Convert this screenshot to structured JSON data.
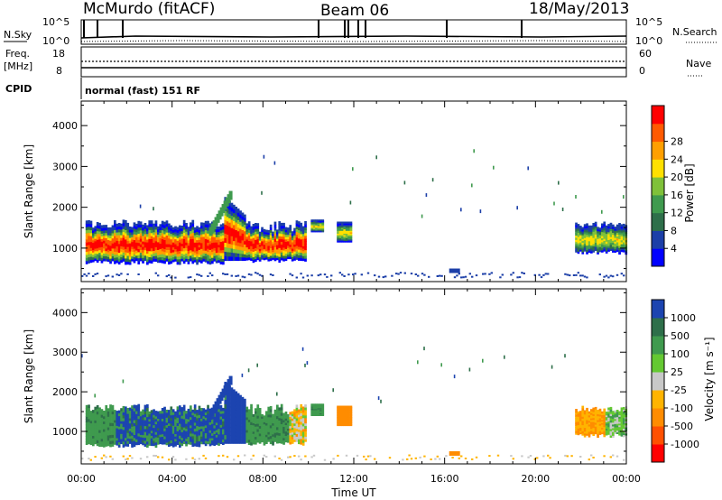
{
  "header": {
    "radar": "McMurdo (fitACF)",
    "beam": "Beam 06",
    "date": "18/May/2013"
  },
  "top_panels": {
    "nsky_label": "N.Sky",
    "nsearch_label": "N.Search",
    "nsky_ticks": [
      "10^5",
      "10^0"
    ],
    "nsearch_ticks": [
      "10^5",
      "10^0"
    ],
    "freq_label_1": "Freq.",
    "freq_label_2": "[MHz]",
    "freq_ticks": [
      "18",
      "8"
    ],
    "nave_label": "Nave",
    "nave_ticks": [
      "60",
      "0"
    ],
    "cpid_label": "CPID",
    "cpid_text": "normal (fast) 151 RF"
  },
  "colors": {
    "power": [
      "#0000ff",
      "#1c3fa8",
      "#2e6f4a",
      "#3f9a4e",
      "#7fc13a",
      "#ffe000",
      "#ff9f00",
      "#ff5a00",
      "#ff0000"
    ],
    "velocity": [
      "#ff0000",
      "#ff5000",
      "#ff8c00",
      "#ffb400",
      "#c8c8c8",
      "#64c832",
      "#3f9a4e",
      "#2e6f4a",
      "#1c44b0"
    ]
  },
  "chart_data": [
    {
      "type": "heatmap",
      "name": "power",
      "ylabel": "Slant Range [km]",
      "ylim": [
        180,
        4600
      ],
      "yticks": [
        "1000",
        "2000",
        "3000",
        "4000"
      ],
      "colorbar_label": "Power [dB]",
      "colorbar_ticks": [
        "4",
        "8",
        "12",
        "16",
        "20",
        "24",
        "28"
      ],
      "xlim": [
        0,
        24
      ]
    },
    {
      "type": "heatmap",
      "name": "velocity",
      "ylabel": "Slant Range [km]",
      "ylim": [
        180,
        4600
      ],
      "yticks": [
        "1000",
        "2000",
        "3000",
        "4000"
      ],
      "colorbar_label": "Velocity [m s⁻¹]",
      "colorbar_ticks": [
        "-1000",
        "-500",
        "-100",
        "-25",
        "25",
        "100",
        "500",
        "1000"
      ],
      "xlim": [
        0,
        24
      ]
    }
  ],
  "xaxis": {
    "label": "Time UT",
    "ticks": [
      "00:00",
      "04:00",
      "08:00",
      "12:00",
      "16:00",
      "20:00",
      "00:00"
    ]
  }
}
